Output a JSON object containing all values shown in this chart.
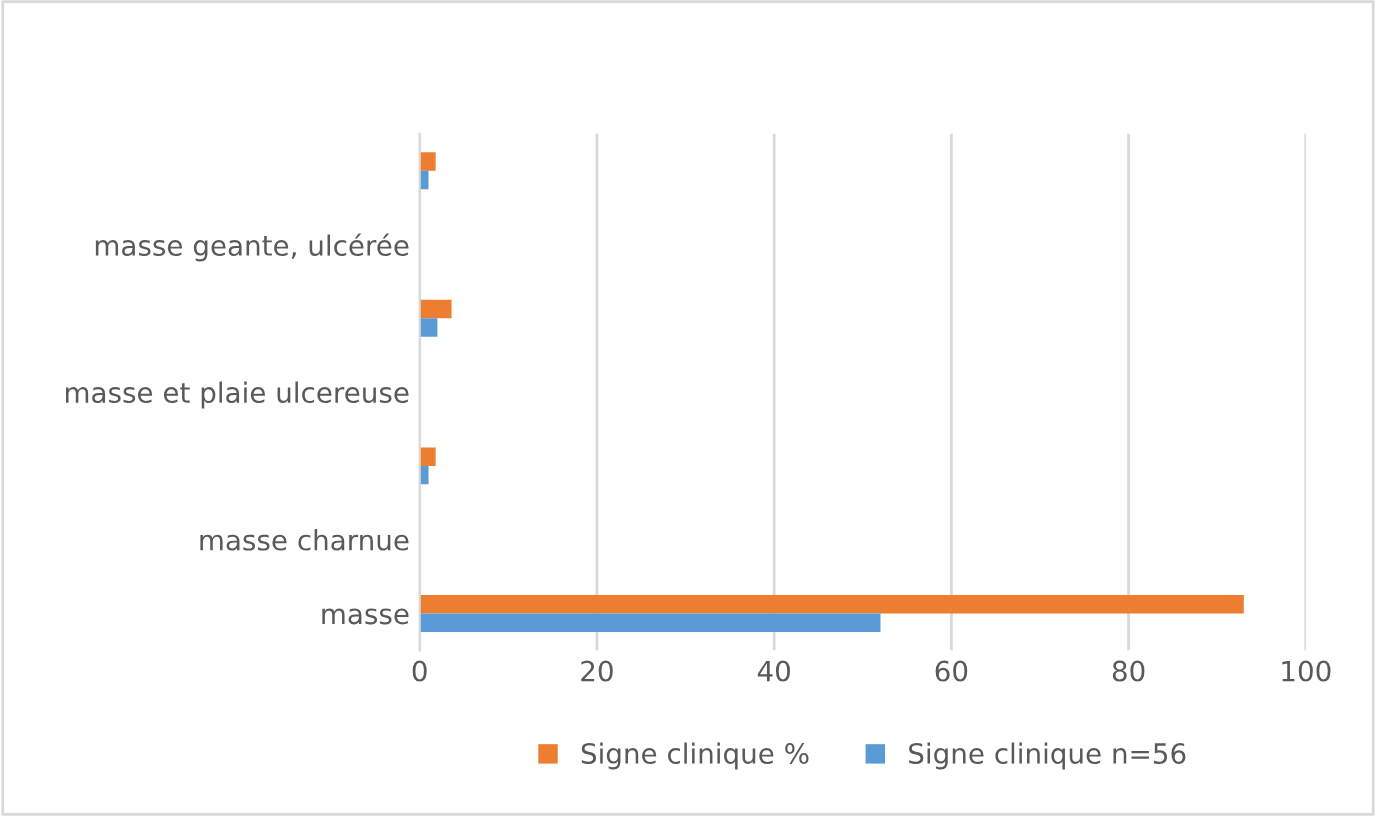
{
  "chart_data": {
    "type": "bar",
    "orientation": "horizontal",
    "categories": [
      null,
      "masse geante, ulcérée",
      null,
      "masse et plaie ulcereuse",
      null,
      "masse charnue",
      "masse"
    ],
    "series": [
      {
        "name": "Signe clinique %",
        "color": "#ed7d31",
        "values": [
          1.8,
          0,
          3.6,
          0,
          1.8,
          0,
          93
        ]
      },
      {
        "name": "Signe clinique n=56",
        "color": "#5b9bd5",
        "values": [
          1,
          0,
          2,
          0,
          1,
          0,
          52
        ]
      }
    ],
    "xlim": [
      0,
      100
    ],
    "xticks": [
      0,
      20,
      40,
      60,
      80,
      100
    ],
    "grid": "x",
    "legend": "bottom"
  }
}
